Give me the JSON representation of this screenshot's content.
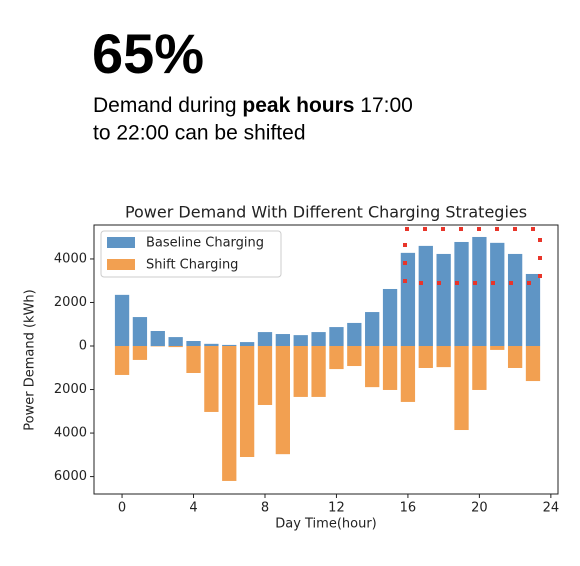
{
  "headline": {
    "figure": "65%",
    "lines": [
      [
        "Demand during ",
        "peak hours",
        " 17:00"
      ],
      [
        "to 22:00 can be shifted"
      ]
    ]
  },
  "chart_data": {
    "type": "bar",
    "title": "Power Demand With Different Charging Strategies",
    "x_label": "Day Time(hour)",
    "y_label": "Power Demand (kWh)",
    "x": [
      0,
      1,
      2,
      3,
      4,
      5,
      6,
      7,
      8,
      9,
      10,
      11,
      12,
      13,
      14,
      15,
      16,
      17,
      18,
      19,
      20,
      21,
      22,
      23
    ],
    "series": [
      {
        "name": "Baseline Charging",
        "color": "#5f95c5",
        "values": [
          2350,
          1330,
          690,
          410,
          230,
          100,
          50,
          180,
          640,
          550,
          500,
          640,
          870,
          1060,
          1560,
          2620,
          4280,
          4600,
          4230,
          4780,
          5010,
          4740,
          4230,
          3310
        ]
      },
      {
        "name": "Shift Charging",
        "color": "#f2a051",
        "values": [
          -1330,
          -640,
          -20,
          -50,
          -1240,
          -3030,
          -6200,
          -5100,
          -2710,
          -4970,
          -2340,
          -2340,
          -1060,
          -920,
          -1890,
          -2020,
          -2570,
          -1010,
          -970,
          -3860,
          -2020,
          -180,
          -1010,
          -1610
        ]
      }
    ],
    "xlim": [
      -1.57,
      24.4
    ],
    "xticks": [
      0,
      4,
      8,
      12,
      16,
      20,
      24
    ],
    "ylim": [
      -6800,
      5560
    ],
    "yticks": [
      4000,
      2000,
      0,
      {
        "value": -2000,
        "label": "2000"
      },
      {
        "value": -4000,
        "label": "4000"
      },
      {
        "value": -6000,
        "label": "6000"
      }
    ],
    "legend": "upper left"
  }
}
